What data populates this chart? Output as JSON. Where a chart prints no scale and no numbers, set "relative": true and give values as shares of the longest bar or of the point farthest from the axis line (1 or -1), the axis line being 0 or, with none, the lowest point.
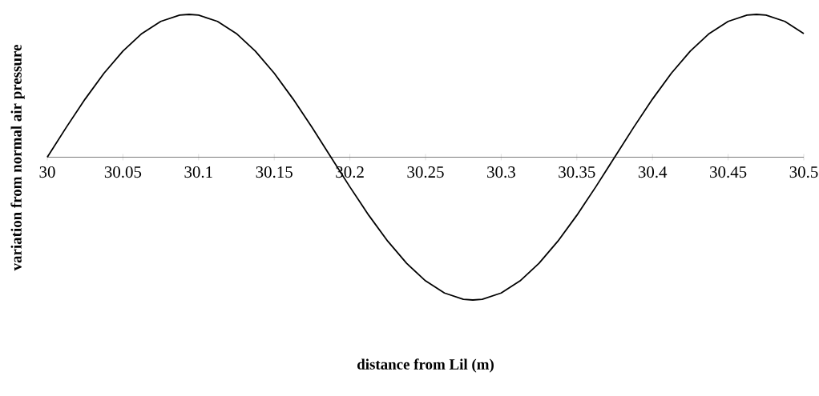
{
  "chart_data": {
    "type": "line",
    "xlabel": "distance from Lil (m)",
    "ylabel": "variation from normal air pressure",
    "relative": true,
    "color": "#000000",
    "xlim": [
      30,
      30.5
    ],
    "xticks": [
      30,
      30.05,
      30.1,
      30.15,
      30.2,
      30.25,
      30.3,
      30.35,
      30.4,
      30.45,
      30.5
    ],
    "x": [
      30,
      30.0125,
      30.025,
      30.0375,
      30.05,
      30.0625,
      30.075,
      30.0875,
      30.09375,
      30.1,
      30.1125,
      30.125,
      30.1375,
      30.15,
      30.1625,
      30.175,
      30.1875,
      30.2,
      30.2125,
      30.225,
      30.2375,
      30.25,
      30.2625,
      30.275,
      30.28125,
      30.2875,
      30.3,
      30.3125,
      30.325,
      30.3375,
      30.35,
      30.3625,
      30.375,
      30.3875,
      30.4,
      30.4125,
      30.425,
      30.4375,
      30.45,
      30.4625,
      30.46875,
      30.475,
      30.4875,
      30.5
    ],
    "values": [
      0,
      0.208,
      0.407,
      0.588,
      0.743,
      0.866,
      0.951,
      0.995,
      1,
      0.995,
      0.951,
      0.866,
      0.743,
      0.588,
      0.407,
      0.208,
      0,
      -0.208,
      -0.407,
      -0.588,
      -0.743,
      -0.866,
      -0.951,
      -0.995,
      -1,
      -0.995,
      -0.951,
      -0.866,
      -0.743,
      -0.588,
      -0.407,
      -0.208,
      0,
      0.208,
      0.407,
      0.588,
      0.743,
      0.866,
      0.951,
      0.995,
      1,
      0.995,
      0.951,
      0.866
    ]
  }
}
